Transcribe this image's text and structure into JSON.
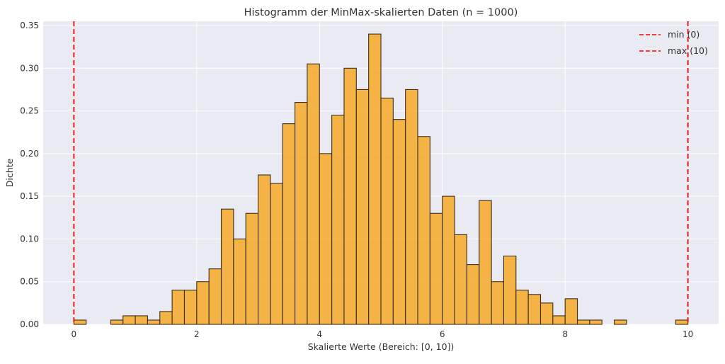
{
  "chart_data": {
    "type": "bar",
    "title": "Histogramm der MinMax-skalierten Daten (n = 1000)",
    "xlabel": "Skalierte Werte (Bereich: [0, 10])",
    "ylabel": "Dichte",
    "xlim": [
      -0.5,
      10.5
    ],
    "ylim": [
      0,
      0.355
    ],
    "xticks": [
      0,
      2,
      4,
      6,
      8,
      10
    ],
    "yticks": [
      0.0,
      0.05,
      0.1,
      0.15,
      0.2,
      0.25,
      0.3,
      0.35
    ],
    "ytick_labels": [
      "0.00",
      "0.05",
      "0.10",
      "0.15",
      "0.20",
      "0.25",
      "0.30",
      "0.35"
    ],
    "grid": true,
    "legend_position": "top-right",
    "bin_start": 0,
    "bin_width": 0.2,
    "values": [
      0.005,
      0,
      0,
      0.005,
      0.01,
      0.01,
      0.005,
      0.015,
      0.04,
      0.04,
      0.05,
      0.065,
      0.135,
      0.1,
      0.13,
      0.175,
      0.165,
      0.235,
      0.26,
      0.305,
      0.2,
      0.245,
      0.3,
      0.275,
      0.34,
      0.265,
      0.24,
      0.275,
      0.22,
      0.13,
      0.15,
      0.105,
      0.07,
      0.145,
      0.05,
      0.08,
      0.04,
      0.035,
      0.025,
      0.01,
      0.03,
      0.005,
      0.005,
      0,
      0.005,
      0,
      0,
      0,
      0,
      0.005
    ],
    "bar_color": "#f7a928",
    "bar_edge_color": "#3a2f20",
    "reference_lines": [
      {
        "label": "min (0)",
        "x": 0,
        "color": "#ff0000"
      },
      {
        "label": "max (10)",
        "x": 10,
        "color": "#ff0000"
      }
    ],
    "plot_background": "#eaeaf2",
    "grid_color": "#ffffff"
  }
}
